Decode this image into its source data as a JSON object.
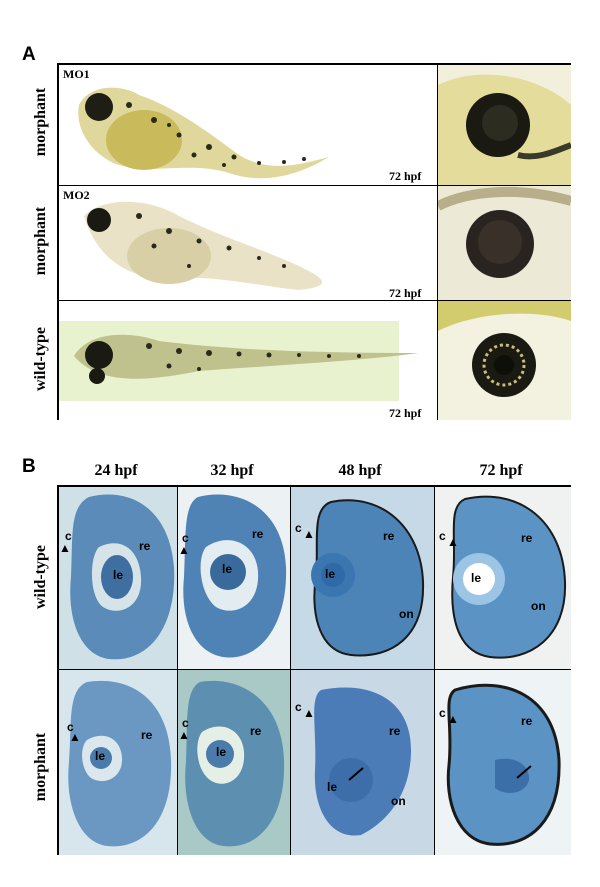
{
  "panel_a": {
    "letter": "A",
    "rows": [
      {
        "row_label": "morphant",
        "tag": "MO1",
        "stage": "72 hpf"
      },
      {
        "row_label": "morphant",
        "tag": "MO2",
        "stage": "72 hpf"
      },
      {
        "row_label": "wild-type",
        "tag": "",
        "stage": "72 hpf"
      }
    ]
  },
  "panel_b": {
    "letter": "B",
    "columns": [
      "24 hpf",
      "32 hpf",
      "48 hpf",
      "72 hpf"
    ],
    "row_labels": [
      "wild-type",
      "morphant"
    ],
    "labels": {
      "cornea": "c",
      "retina": "re",
      "lens": "le",
      "optic_nerve": "on"
    }
  }
}
